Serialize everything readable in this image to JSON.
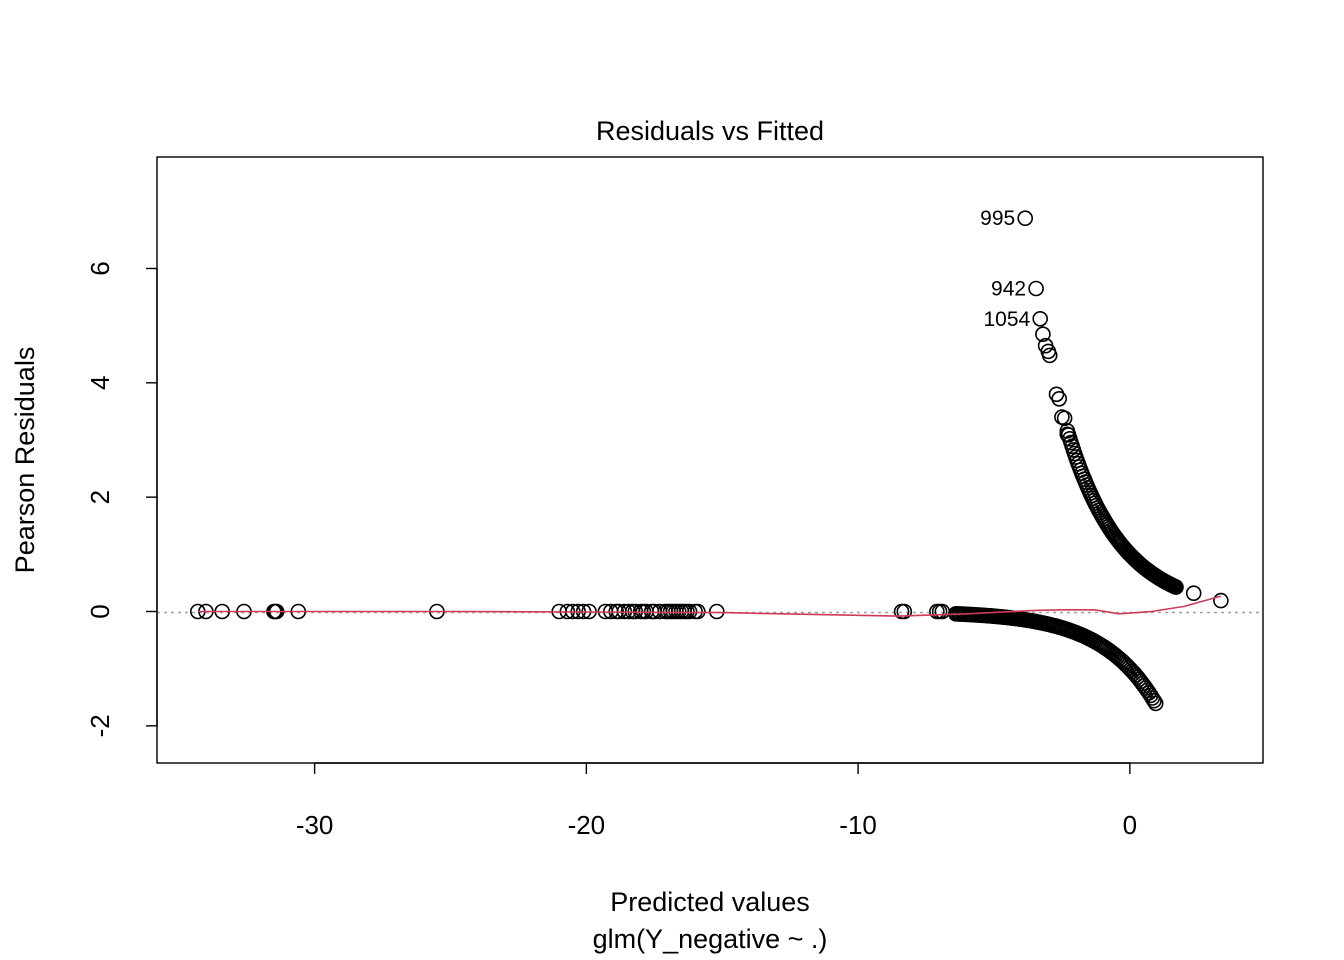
{
  "chart_data": {
    "type": "scatter",
    "title": "Residuals vs Fitted",
    "xlabel": "Predicted values",
    "subtitle": "glm(Y_negative ~ .)",
    "ylabel": "Pearson Residuals",
    "xlim": [
      -35.8,
      4.9
    ],
    "ylim": [
      -2.65,
      7.95
    ],
    "x_ticks": [
      -30,
      -20,
      -10,
      0
    ],
    "x_tick_labels": [
      "-30",
      "-20",
      "-10",
      "0"
    ],
    "y_ticks": [
      -2,
      0,
      2,
      4,
      6
    ],
    "y_tick_labels": [
      "-2",
      "0",
      "2",
      "4",
      "6"
    ],
    "grid": false,
    "reference_line_y": 0,
    "flat_points_x": [
      -34.3,
      -34.0,
      -33.4,
      -32.6,
      -31.5,
      -31.45,
      -31.4,
      -30.6,
      -25.5,
      -21.0,
      -20.7,
      -20.5,
      -20.3,
      -20.1,
      -19.9,
      -19.3,
      -19.1,
      -18.9,
      -18.8,
      -18.6,
      -18.45,
      -18.3,
      -18.2,
      -18.0,
      -17.9,
      -17.8,
      -17.6,
      -17.5,
      -17.3,
      -17.1,
      -17.0,
      -16.9,
      -16.8,
      -16.7,
      -16.6,
      -16.5,
      -16.4,
      -16.3,
      -16.2,
      -16.0,
      -15.9,
      -15.2,
      -8.4,
      -8.3,
      -7.1,
      -7.0,
      -6.9
    ],
    "positive_branch": [
      {
        "x": -3.85,
        "y": 6.88
      },
      {
        "x": -3.45,
        "y": 5.65
      },
      {
        "x": -3.3,
        "y": 5.12
      },
      {
        "x": -3.2,
        "y": 4.85
      },
      {
        "x": -3.1,
        "y": 4.65
      },
      {
        "x": -3.0,
        "y": 4.55
      },
      {
        "x": -2.95,
        "y": 4.48
      },
      {
        "x": -2.7,
        "y": 3.8
      },
      {
        "x": -2.6,
        "y": 3.72
      },
      {
        "x": -2.5,
        "y": 3.4
      },
      {
        "x": -2.4,
        "y": 3.38
      },
      {
        "x": -2.3,
        "y": 3.1
      },
      {
        "x": 2.35,
        "y": 0.32
      },
      {
        "x": 3.35,
        "y": 0.19
      }
    ],
    "positive_curve_range": [
      -2.3,
      1.7
    ],
    "negative_curve_range": [
      -6.4,
      0.95
    ],
    "smooth_line": [
      {
        "x": -34.3,
        "y": 0.0
      },
      {
        "x": -25.0,
        "y": 0.0
      },
      {
        "x": -15.0,
        "y": -0.02
      },
      {
        "x": -8.5,
        "y": -0.08
      },
      {
        "x": -6.0,
        "y": -0.04
      },
      {
        "x": -3.5,
        "y": 0.02
      },
      {
        "x": -2.5,
        "y": 0.03
      },
      {
        "x": -1.3,
        "y": 0.03
      },
      {
        "x": -0.4,
        "y": -0.04
      },
      {
        "x": 0.8,
        "y": 0.0
      },
      {
        "x": 2.0,
        "y": 0.09
      },
      {
        "x": 3.35,
        "y": 0.27
      }
    ],
    "labels": [
      {
        "text": "995",
        "x": -3.85,
        "y": 6.88
      },
      {
        "text": "942",
        "x": -3.45,
        "y": 5.65
      },
      {
        "text": "1054",
        "x": -3.3,
        "y": 5.12
      }
    ],
    "colors": {
      "points": "#000000",
      "smooth": "#d03a5a",
      "reference": "#a0a0a0"
    }
  }
}
